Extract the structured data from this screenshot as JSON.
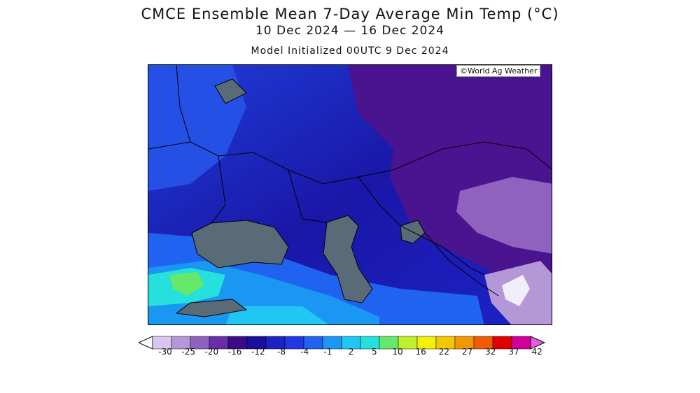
{
  "title": "CMCE Ensemble Mean 7-Day Average Min Temp (°C)",
  "date_range": "10 Dec 2024 — 16 Dec 2024",
  "init": "Model Initialized 00UTC 9 Dec 2024",
  "credit": "©World Ag Weather",
  "legend": {
    "colors": [
      "#d8c6ec",
      "#b497d6",
      "#8f62c0",
      "#6a2ea8",
      "#3c0a88",
      "#1a0f9a",
      "#1c22c4",
      "#2038e6",
      "#1f63f0",
      "#1a97f2",
      "#1fc7f2",
      "#25e0dc",
      "#66e86a",
      "#c0f02a",
      "#f3f00a",
      "#f3c800",
      "#f39700",
      "#f05a00",
      "#e00000",
      "#d1009b",
      "#e65cdc"
    ],
    "ticks": [
      "-30",
      "-25",
      "-20",
      "-16",
      "-12",
      "-8",
      "-4",
      "-1",
      "2",
      "5",
      "10",
      "16",
      "22",
      "27",
      "32",
      "37",
      "42"
    ]
  }
}
